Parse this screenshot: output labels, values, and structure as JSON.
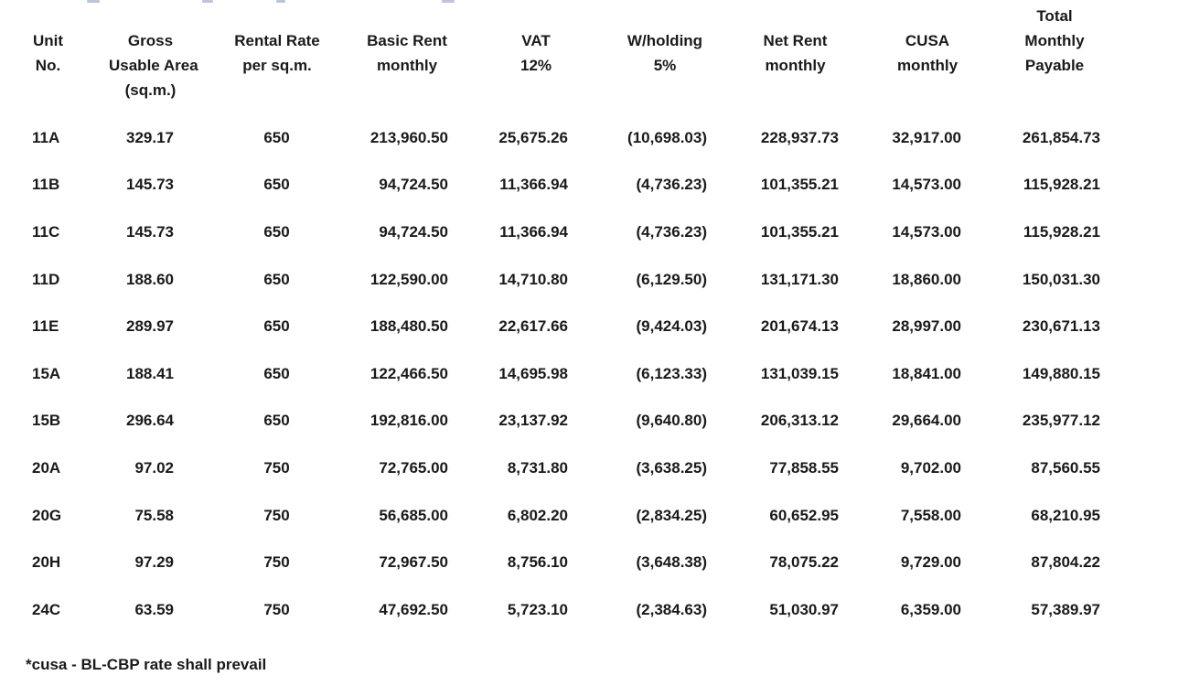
{
  "document": {
    "type": "rent-schedule-table",
    "colors": {
      "text": "#1a1a1a",
      "background": "#ffffff"
    },
    "table": {
      "columns": [
        {
          "id": "unit-no",
          "header_lines": [
            "Unit",
            "No."
          ]
        },
        {
          "id": "gross-usable-area",
          "header_lines": [
            "Gross",
            "Usable Area",
            "(sq.m.)"
          ]
        },
        {
          "id": "rental-rate",
          "header_lines": [
            "Rental Rate",
            "per sq.m."
          ]
        },
        {
          "id": "basic-rent",
          "header_lines": [
            "Basic Rent",
            "monthly"
          ]
        },
        {
          "id": "vat",
          "header_lines": [
            "VAT",
            "12%"
          ]
        },
        {
          "id": "withholding",
          "header_lines": [
            "W/holding",
            "5%"
          ]
        },
        {
          "id": "net-rent",
          "header_lines": [
            "Net Rent",
            "monthly"
          ]
        },
        {
          "id": "cusa",
          "header_lines": [
            "CUSA",
            "monthly"
          ]
        },
        {
          "id": "total-monthly",
          "header_lines": [
            "Total",
            "Monthly",
            "Payable"
          ]
        }
      ],
      "rows": [
        [
          "11A",
          "329.17",
          "650",
          "213,960.50",
          "25,675.26",
          "(10,698.03)",
          "228,937.73",
          "32,917.00",
          "261,854.73"
        ],
        [
          "11B",
          "145.73",
          "650",
          "94,724.50",
          "11,366.94",
          "(4,736.23)",
          "101,355.21",
          "14,573.00",
          "115,928.21"
        ],
        [
          "11C",
          "145.73",
          "650",
          "94,724.50",
          "11,366.94",
          "(4,736.23)",
          "101,355.21",
          "14,573.00",
          "115,928.21"
        ],
        [
          "11D",
          "188.60",
          "650",
          "122,590.00",
          "14,710.80",
          "(6,129.50)",
          "131,171.30",
          "18,860.00",
          "150,031.30"
        ],
        [
          "11E",
          "289.97",
          "650",
          "188,480.50",
          "22,617.66",
          "(9,424.03)",
          "201,674.13",
          "28,997.00",
          "230,671.13"
        ],
        [
          "15A",
          "188.41",
          "650",
          "122,466.50",
          "14,695.98",
          "(6,123.33)",
          "131,039.15",
          "18,841.00",
          "149,880.15"
        ],
        [
          "15B",
          "296.64",
          "650",
          "192,816.00",
          "23,137.92",
          "(9,640.80)",
          "206,313.12",
          "29,664.00",
          "235,977.12"
        ],
        [
          "20A",
          "97.02",
          "750",
          "72,765.00",
          "8,731.80",
          "(3,638.25)",
          "77,858.55",
          "9,702.00",
          "87,560.55"
        ],
        [
          "20G",
          "75.58",
          "750",
          "56,685.00",
          "6,802.20",
          "(2,834.25)",
          "60,652.95",
          "7,558.00",
          "68,210.95"
        ],
        [
          "20H",
          "97.29",
          "750",
          "72,967.50",
          "8,756.10",
          "(3,648.38)",
          "78,075.22",
          "9,729.00",
          "87,804.22"
        ],
        [
          "24C",
          "63.59",
          "750",
          "47,692.50",
          "5,723.10",
          "(2,384.63)",
          "51,030.97",
          "6,359.00",
          "57,389.97"
        ]
      ]
    },
    "footnote": "*cusa - BL-CBP rate shall prevail"
  }
}
